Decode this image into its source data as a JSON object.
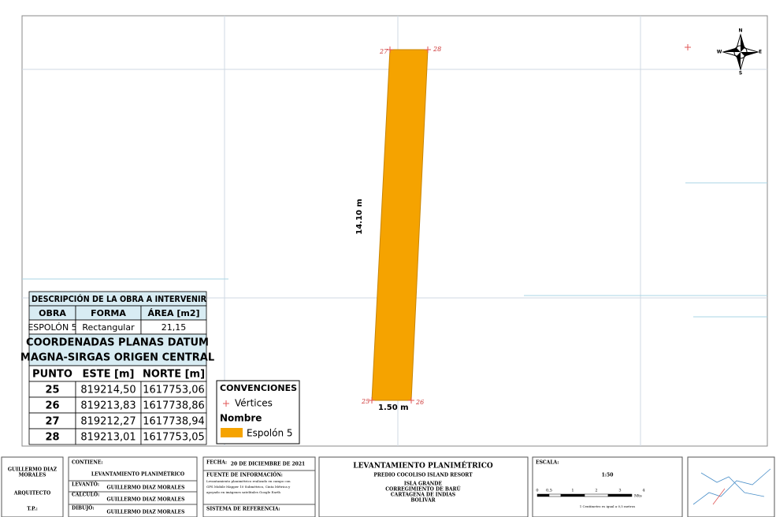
{
  "map": {
    "vertices": {
      "p25": "25",
      "p26": "26",
      "p27": "27",
      "p28": "28"
    },
    "length_label": "14.10 m",
    "width_label": "1.50 m",
    "compass": {
      "n": "N",
      "s": "S",
      "e": "E",
      "w": "W"
    }
  },
  "work_table": {
    "title": "DESCRIPCIÓN DE LA OBRA A INTERVENIR",
    "headers": [
      "OBRA",
      "FORMA",
      "ÁREA [m2]"
    ],
    "rows": [
      [
        "ESPOLÓN 5",
        "Rectangular",
        "21,15"
      ]
    ]
  },
  "coord_table": {
    "title": [
      "COORDENADAS PLANAS DATUM",
      "MAGNA-SIRGAS ORIGEN CENTRAL"
    ],
    "headers": [
      "PUNTO",
      "ESTE [m]",
      "NORTE [m]"
    ],
    "rows": [
      [
        "25",
        "819214,50",
        "1617753,06"
      ],
      [
        "26",
        "819213,83",
        "1617738,86"
      ],
      [
        "27",
        "819212,27",
        "1617738,94"
      ],
      [
        "28",
        "819213,01",
        "1617753,05"
      ]
    ]
  },
  "legend": {
    "title": "CONVENCIONES",
    "vertex": "Vértices",
    "name_title": "Nombre",
    "item": "Espolón 5"
  },
  "title_block": {
    "author": [
      "GUILLERMO DIAZ",
      "MORALES"
    ],
    "profession": "ARQUITECTO",
    "tp": "T.P.:",
    "contiene_label": "CONTIENE:",
    "contiene": "LEVANTAMIENTO PLANIMÉTRICO",
    "levanto_label": "LEVANTÓ:",
    "levanto": "GUILLERMO DIAZ MORALES",
    "calculo_label": "CALCULÓ:",
    "calculo": "GUILLERMO DIAZ MORALES",
    "dibujo_label": "DIBUJÓ:",
    "dibujo": "GUILLERMO DIAZ MORALES",
    "fecha_label": "FECHA:",
    "fecha": "20 DE DICIEMBRE DE 2021",
    "fuente_label": "FUENTE DE INFORMACIÓN:",
    "fuente": [
      "Levantamiento planimétrico realizado en campo con",
      "GPS Mobile Mapper 10 Submétrico, Cinta Métrica y",
      "apoyado en imágenes satelitales Google Earth"
    ],
    "sistema_label": "SISTEMA DE REFERENCIA:",
    "project": [
      "LEVANTAMIENTO PLANIMÉTRICO",
      "PREDIO COCOLISO ISLAND RESORT",
      "ISLA GRANDE",
      "CORREGIMIENTO DE BARÚ",
      "CARTAGENA DE INDIAS",
      "BOLIVAR"
    ],
    "escala_label": "ESCALA:",
    "escala": "1:50",
    "scale_ticks": [
      "0",
      "0,5",
      "1",
      "2",
      "3",
      "4"
    ],
    "scale_unit": "Mts",
    "scale_note": "1 Centímetro es igual a 0,5 metros"
  }
}
